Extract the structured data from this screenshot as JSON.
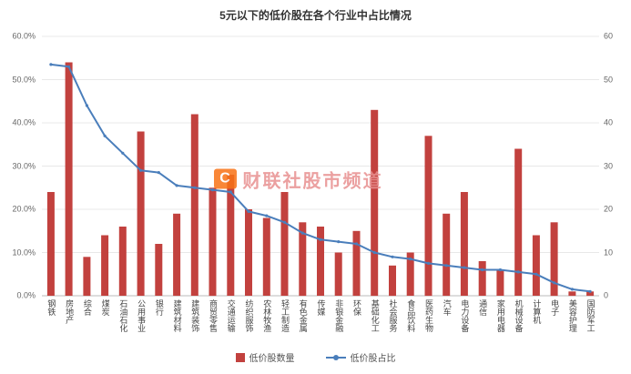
{
  "chart": {
    "title": "5元以下的低价股在各个行业中占比情况",
    "watermark": {
      "logo_letter": "C",
      "text": "财联社股市频道"
    }
  },
  "chart_data": {
    "type": "bar+line",
    "title": "5元以下的低价股在各个行业中占比情况",
    "categories": [
      "钢铁",
      "房地产",
      "综合",
      "煤炭",
      "石油石化",
      "公用事业",
      "银行",
      "建筑材料",
      "建筑装饰",
      "商贸零售",
      "交通运输",
      "纺织服饰",
      "农林牧渔",
      "轻工制造",
      "有色金属",
      "传媒",
      "非银金融",
      "环保",
      "基础化工",
      "社会服务",
      "食品饮料",
      "医药生物",
      "汽车",
      "电力设备",
      "通信",
      "家用电器",
      "机械设备",
      "计算机",
      "电子",
      "美容护理",
      "国防军工"
    ],
    "series": [
      {
        "name": "低价股数量",
        "type": "bar",
        "axis": "right",
        "values": [
          24,
          54,
          9,
          14,
          16,
          38,
          12,
          19,
          42,
          25,
          28,
          20,
          18,
          24,
          17,
          16,
          10,
          15,
          43,
          7,
          10,
          37,
          19,
          24,
          8,
          6,
          34,
          14,
          17,
          1,
          1
        ]
      },
      {
        "name": "低价股占比",
        "type": "line",
        "axis": "left",
        "unit": "%",
        "values": [
          53.5,
          53,
          44,
          37,
          33,
          29,
          28.5,
          25.5,
          25,
          24.5,
          24,
          19.5,
          18.5,
          17,
          14.5,
          13,
          12.5,
          12,
          10,
          9,
          8.5,
          7.5,
          7,
          6.5,
          6,
          6,
          5.5,
          5,
          3,
          1.5,
          1
        ]
      }
    ],
    "left_axis": {
      "ticks": [
        "0.0%",
        "10.0%",
        "20.0%",
        "30.0%",
        "40.0%",
        "50.0%",
        "60.0%"
      ],
      "min": 0,
      "max": 60
    },
    "right_axis": {
      "ticks": [
        "0",
        "10",
        "20",
        "30",
        "40",
        "50",
        "60"
      ],
      "min": 0,
      "max": 60
    },
    "colors": {
      "bar": "#c2413e",
      "line": "#4a7ebb",
      "grid": "#e8e8e8",
      "baseline": "#bbbbbb"
    },
    "grid": true,
    "legend_position": "bottom"
  }
}
